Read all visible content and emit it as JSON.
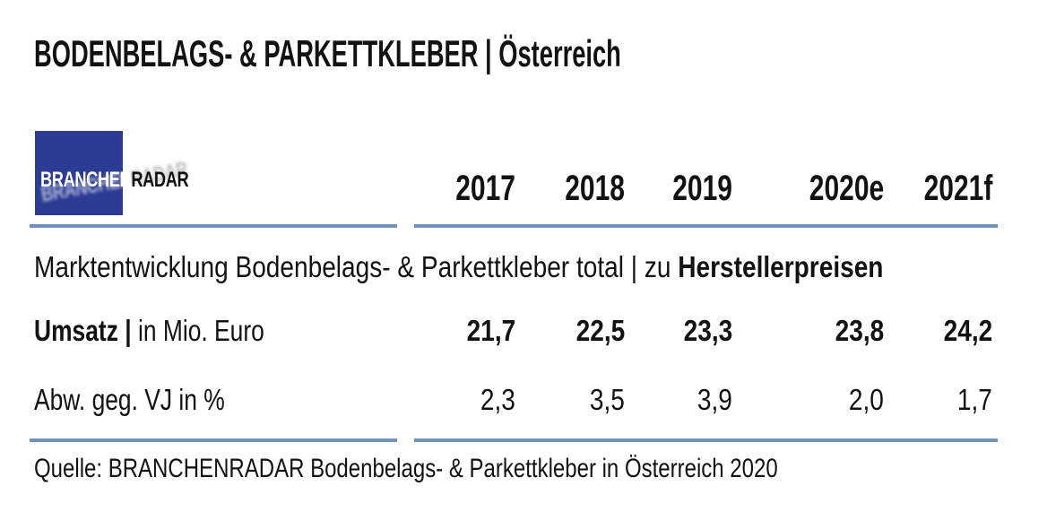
{
  "title": "BODENBELAGS- & PARKETTKLEBER | Österreich",
  "logo": {
    "branchen": "BRANCHEN",
    "radar": "RADAR"
  },
  "colors": {
    "accent_rule_blue": "#7093ba",
    "logo_blue": "#2c3b94",
    "text": "#121212"
  },
  "table": {
    "year_headers": [
      "2017",
      "2018",
      "2019",
      "2020e",
      "2021f"
    ],
    "section_label_regular": "Marktentwicklung Bodenbelags- & Parkettkleber total | zu ",
    "section_label_bold": "Herstellerpreisen",
    "rows": [
      {
        "label_bold": "Umsatz |",
        "label_regular": " in Mio. Euro",
        "values": [
          "21,7",
          "22,5",
          "23,3",
          "23,8",
          "24,2"
        ]
      },
      {
        "label_bold": "",
        "label_regular": "Abw. geg. VJ in %",
        "values": [
          "2,3",
          "3,5",
          "3,9",
          "2,0",
          "1,7"
        ]
      }
    ]
  },
  "source": "Quelle: BRANCHENRADAR Bodenbelags- & Parkettkleber in Österreich 2020",
  "chart_data": {
    "type": "table",
    "title": "BODENBELAGS- & PARKETTKLEBER | Österreich",
    "subtitle": "Marktentwicklung Bodenbelags- & Parkettkleber total | zu Herstellerpreisen",
    "categories": [
      "2017",
      "2018",
      "2019",
      "2020e",
      "2021f"
    ],
    "series": [
      {
        "name": "Umsatz | in Mio. Euro",
        "values": [
          21.7,
          22.5,
          23.3,
          23.8,
          24.2
        ]
      },
      {
        "name": "Abw. geg. VJ in %",
        "values": [
          2.3,
          3.5,
          3.9,
          2.0,
          1.7
        ]
      }
    ],
    "source": "Quelle: BRANCHENRADAR Bodenbelags- & Parkettkleber in Österreich 2020"
  }
}
